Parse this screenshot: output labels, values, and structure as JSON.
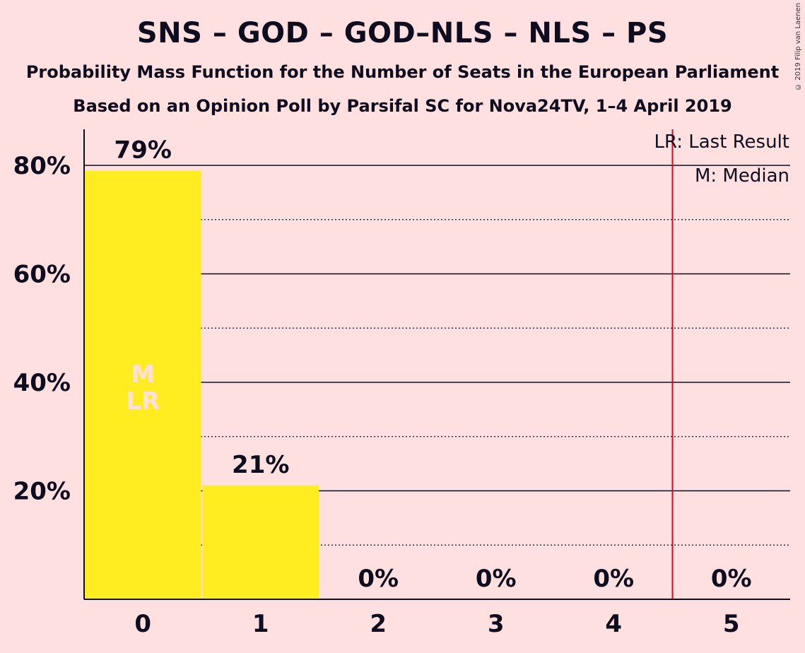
{
  "title": "SNS – GOD – GOD–NLS – NLS – PS",
  "subtitle": "Probability Mass Function for the Number of Seats in the European Parliament",
  "subtitle2": "Based on an Opinion Poll by Parsifal SC for Nova24TV, 1–4 April 2019",
  "copyright": "© 2019 Filip van Laenen",
  "legend": {
    "lr": "LR: Last Result",
    "m": "M: Median"
  },
  "colors": {
    "background": "#FFE0E0",
    "bar": "#FFED22",
    "last_result_line": "#E0001F",
    "axis": "#0D0D1F",
    "marker_text": "#FFE0E0"
  },
  "chart_data": {
    "type": "bar",
    "categories": [
      "0",
      "1",
      "2",
      "3",
      "4",
      "5"
    ],
    "values": [
      79,
      21,
      0,
      0,
      0,
      0
    ],
    "value_labels": [
      "79%",
      "21%",
      "0%",
      "0%",
      "0%",
      "0%"
    ],
    "yticks": [
      20,
      40,
      60,
      80
    ],
    "ytick_labels": [
      "20%",
      "40%",
      "60%",
      "80%"
    ],
    "minor_gridlines": [
      10,
      30,
      50,
      70
    ],
    "ylim": [
      0,
      87
    ],
    "median_category": "0",
    "last_result_category": "0",
    "median_label": "M",
    "last_result_label": "LR",
    "last_result_line_between": [
      "4",
      "5"
    ],
    "legend_position": "top-right"
  }
}
